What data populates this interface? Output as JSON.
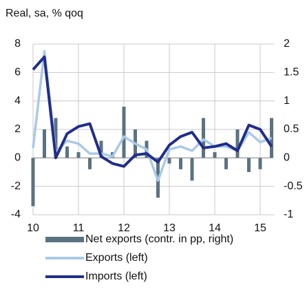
{
  "chart_data": {
    "type": "bar-line",
    "title": "Real, sa, % qoq",
    "x": [
      10,
      10.25,
      10.5,
      10.75,
      11,
      11.25,
      11.5,
      11.75,
      12,
      12.25,
      12.5,
      12.75,
      13,
      13.25,
      13.5,
      13.75,
      14,
      14.25,
      14.5,
      14.75,
      15,
      15.25
    ],
    "xlim": [
      10,
      15.25
    ],
    "xticks": [
      10,
      11,
      12,
      13,
      14,
      15
    ],
    "ylim": [
      -4,
      8
    ],
    "yticks": [
      -4,
      -2,
      0,
      2,
      4,
      6,
      8
    ],
    "y2lim": [
      -1,
      2
    ],
    "y2ticks": [
      -1,
      {
        "value": -0.5,
        "label": "-0.5"
      },
      0,
      {
        "value": 0.5,
        "label": "0.5"
      },
      1,
      {
        "value": 1.5,
        "label": "1.5"
      },
      2
    ],
    "series": [
      {
        "name": "Net exports (contr. in pp, right)",
        "color": "#5b7282",
        "axis": "y2",
        "kind": "bar",
        "values": [
          -0.85,
          0.5,
          0.7,
          0.2,
          0.1,
          -0.2,
          0.3,
          0.1,
          0.9,
          0.5,
          0.3,
          -0.7,
          -0.1,
          -0.2,
          -0.4,
          0.7,
          0.1,
          -0.2,
          0.5,
          -0.25,
          -0.2,
          0.7
        ]
      },
      {
        "name": "Exports (left)",
        "color": "#a9c9e8",
        "kind": "line",
        "values": [
          0.7,
          7.5,
          0.4,
          1.2,
          1.0,
          0.3,
          0.3,
          0.1,
          1.5,
          1.0,
          0.6,
          -1.6,
          0.6,
          0.8,
          0.5,
          1.3,
          0.8,
          0.8,
          0.5,
          1.8,
          1.1,
          1.4
        ]
      },
      {
        "name": "Imports (left)",
        "color": "#1f2d8c",
        "kind": "line",
        "values": [
          6.2,
          7.1,
          0.0,
          1.7,
          2.2,
          2.4,
          0.1,
          -0.4,
          -0.6,
          0.2,
          0.3,
          -0.3,
          0.9,
          1.5,
          1.8,
          0.7,
          0.8,
          1.0,
          0.5,
          2.3,
          2.0,
          0.8
        ]
      }
    ]
  }
}
